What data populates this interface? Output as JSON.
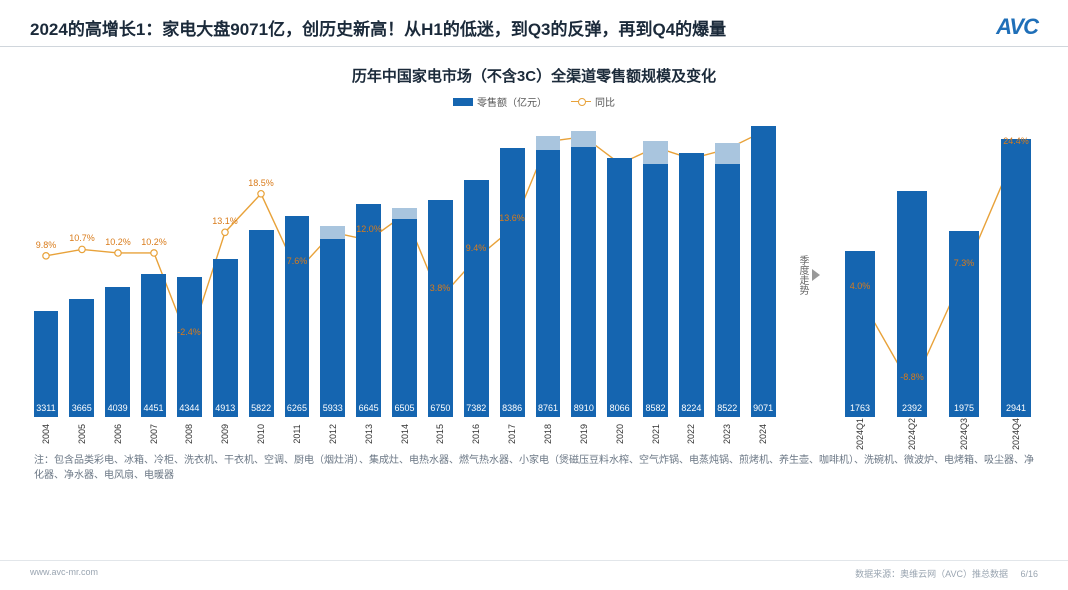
{
  "header": {
    "title": "2024的高增长1：家电大盘9071亿，创历史新高！从H1的低迷，到Q3的反弹，再到Q4的爆量",
    "logo_text": "AVC"
  },
  "chart": {
    "title": "历年中国家电市场（不含3C）全渠道零售额规模及变化",
    "legend_bar": "零售额（亿元）",
    "legend_line": "同比",
    "bar_color": "#1565b0",
    "bar_color_overlay": "#a9c5de",
    "line_color": "#e8a23a",
    "line_label_color": "#d97b1a",
    "background_color": "#ffffff",
    "value_max": 9400,
    "value_max_q": 3200,
    "yoy_min": -10,
    "yoy_max": 26,
    "main": {
      "categories": [
        "2004",
        "2005",
        "2006",
        "2007",
        "2008",
        "2009",
        "2010",
        "2011",
        "2012",
        "2013",
        "2014",
        "2015",
        "2016",
        "2017",
        "2018",
        "2019",
        "2020",
        "2021",
        "2022",
        "2023",
        "2024"
      ],
      "values": [
        3311,
        3665,
        4039,
        4451,
        4344,
        4913,
        5822,
        6265,
        5933,
        6645,
        6505,
        6750,
        7382,
        8386,
        8761,
        8910,
        8066,
        8582,
        8224,
        8522,
        9071
      ],
      "overlay": [
        0,
        0,
        0,
        0,
        0,
        0,
        0,
        0,
        400,
        0,
        350,
        0,
        0,
        0,
        450,
        500,
        0,
        700,
        0,
        650,
        0
      ],
      "yoy": [
        9.8,
        10.7,
        10.2,
        10.2,
        -2.4,
        13.1,
        18.5,
        7.6,
        null,
        12.0,
        null,
        3.8,
        9.4,
        13.6,
        null,
        null,
        null,
        null,
        null,
        null,
        null
      ],
      "yoy_labels": [
        "9.8%",
        "10.7%",
        "10.2%",
        "10.2%",
        "-2.4%",
        "13.1%",
        "18.5%",
        "7.6%",
        "",
        "12.0%",
        "",
        "3.8%",
        "9.4%",
        "13.6%",
        "",
        "",
        "",
        "",
        "",
        "",
        ""
      ]
    },
    "quarters": {
      "categories": [
        "2024Q1",
        "2024Q2",
        "2024Q3",
        "2024Q4"
      ],
      "values": [
        1763,
        2392,
        1975,
        2941
      ],
      "yoy": [
        4.0,
        -8.8,
        7.3,
        24.4
      ],
      "yoy_labels": [
        "4.0%",
        "-8.8%",
        "7.3%",
        "24.4%"
      ]
    },
    "divider_label": "季度走势"
  },
  "footnote": "注：包含品类彩电、冰箱、冷柜、洗衣机、干衣机、空调、厨电（烟灶消）、集成灶、电热水器、燃气热水器、小家电（煲磁压豆料水榨、空气炸锅、电蒸炖锅、煎烤机、养生壶、咖啡机）、洗碗机、微波炉、电烤箱、吸尘器、净化器、净水器、电风扇、电暖器",
  "footer": {
    "left": "www.avc-mr.com",
    "right_source": "数据来源：奥维云网（AVC）推总数据",
    "page": "6/16"
  }
}
